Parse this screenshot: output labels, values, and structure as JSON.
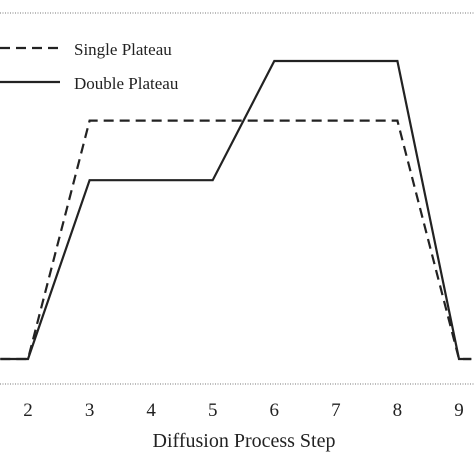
{
  "chart_data": {
    "type": "line",
    "xlabel": "Diffusion Process Step",
    "ylabel": "",
    "x_ticks": [
      "2",
      "3",
      "4",
      "5",
      "6",
      "7",
      "8",
      "9"
    ],
    "xlim": [
      1.55,
      9.2
    ],
    "ylim": [
      0,
      3
    ],
    "grid": false,
    "legend": {
      "placement": "top-left",
      "entries": [
        {
          "name": "Single Plateau",
          "style": "dashed"
        },
        {
          "name": "Double Plateau",
          "style": "solid"
        }
      ]
    },
    "series": [
      {
        "name": "Single Plateau",
        "style": "dashed",
        "color": "#222222",
        "x": [
          1.55,
          2,
          3,
          8,
          9,
          9.2
        ],
        "y": [
          0,
          0,
          2,
          2,
          0,
          0
        ]
      },
      {
        "name": "Double Plateau",
        "style": "solid",
        "color": "#222222",
        "x": [
          1.55,
          2,
          3,
          5,
          6,
          8,
          9,
          9.2
        ],
        "y": [
          0,
          0,
          1.5,
          1.5,
          2.5,
          2.5,
          0,
          0
        ]
      }
    ]
  }
}
